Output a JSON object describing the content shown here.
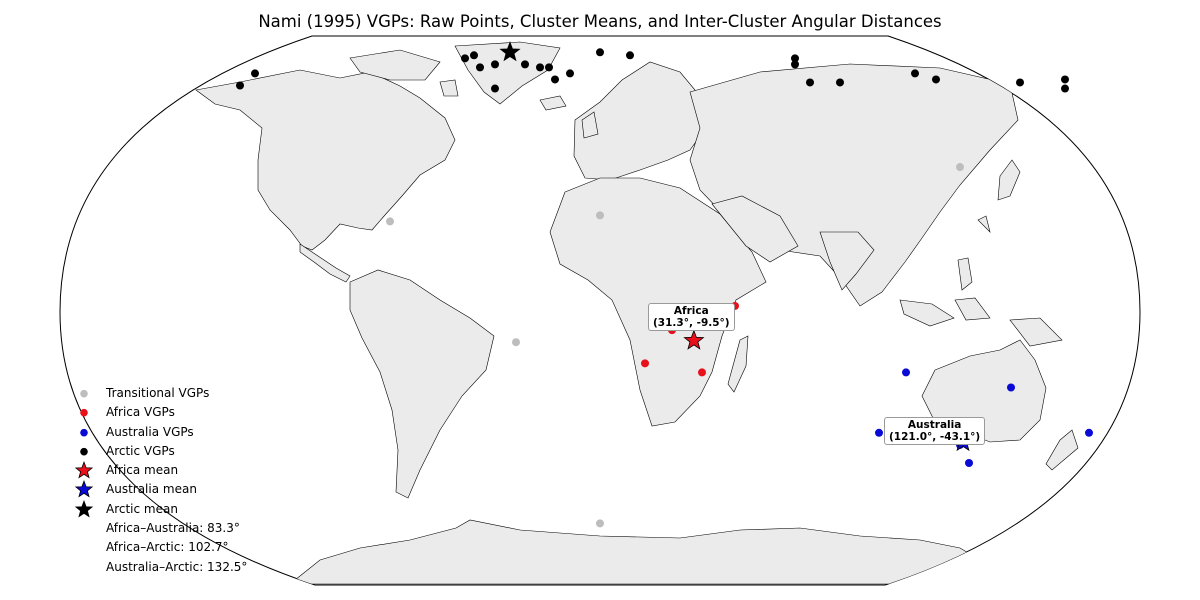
{
  "title": "Nami (1995) VGPs: Raw Points, Cluster Means, and Inter-Cluster Angular Distances",
  "colors": {
    "transitional": "#bdbdbd",
    "africa": "#e8101a",
    "australia": "#0a0ad6",
    "arctic": "#000000",
    "land": "#ebebeb",
    "ocean": "#ffffff"
  },
  "legend": [
    {
      "label": "Transitional VGPs",
      "marker": "dot",
      "color": "#bdbdbd"
    },
    {
      "label": "Africa VGPs",
      "marker": "dot",
      "color": "#e8101a"
    },
    {
      "label": "Australia VGPs",
      "marker": "dot",
      "color": "#0a0ad6"
    },
    {
      "label": "Arctic VGPs",
      "marker": "dot",
      "color": "#000000"
    },
    {
      "label": "Africa mean",
      "marker": "star",
      "color": "#e8101a"
    },
    {
      "label": "Australia mean",
      "marker": "star",
      "color": "#0a0ad6"
    },
    {
      "label": "Arctic mean",
      "marker": "star",
      "color": "#000000"
    },
    {
      "label": "Africa–Australia: 83.3°",
      "marker": "none"
    },
    {
      "label": "Africa–Arctic: 102.7°",
      "marker": "none"
    },
    {
      "label": "Australia–Arctic: 132.5°",
      "marker": "none"
    }
  ],
  "annotations": {
    "africa_name": "Africa",
    "africa_coords": "(31.3°, -9.5°)",
    "australia_name": "Australia",
    "australia_coords": "(121.0°, -43.1°)"
  },
  "chart_data": {
    "type": "scatter",
    "projection": "Robinson",
    "series": [
      {
        "name": "Transitional VGPs",
        "points": [
          [
            -28,
            -10
          ],
          [
            0,
            -70
          ],
          [
            -70,
            30
          ],
          [
            120,
            48
          ],
          [
            0,
            32
          ]
        ]
      },
      {
        "name": "Africa VGPs",
        "points": [
          [
            24,
            -6
          ],
          [
            45,
            2
          ],
          [
            15,
            -17
          ],
          [
            34,
            -20
          ]
        ]
      },
      {
        "name": "Australia VGPs",
        "points": [
          [
            102,
            -20
          ],
          [
            137,
            -25
          ],
          [
            93,
            -40
          ],
          [
            120,
            -44
          ],
          [
            163,
            -40
          ],
          [
            123,
            -50
          ]
        ]
      },
      {
        "name": "Arctic VGPs",
        "points": [
          [
            -45,
            84
          ],
          [
            -40,
            81
          ],
          [
            -35,
            82
          ],
          [
            -25,
            82
          ],
          [
            -10,
            79
          ],
          [
            -17,
            81
          ],
          [
            0,
            86
          ],
          [
            10,
            85
          ],
          [
            65,
            84
          ],
          [
            65,
            82
          ],
          [
            70,
            76
          ],
          [
            105,
            79
          ],
          [
            112,
            77
          ],
          [
            140,
            76
          ],
          [
            155,
            74
          ],
          [
            155,
            77
          ],
          [
            -35,
            74
          ],
          [
            -120,
            75
          ],
          [
            -15,
            77
          ],
          [
            80,
            76
          ],
          [
            -115,
            79
          ],
          [
            -42,
            85
          ],
          [
            -20,
            81
          ]
        ]
      },
      {
        "name": "Africa mean",
        "points": [
          [
            31.3,
            -9.5
          ]
        ]
      },
      {
        "name": "Australia mean",
        "points": [
          [
            121.0,
            -43.1
          ]
        ]
      },
      {
        "name": "Arctic mean",
        "points": [
          [
            -30,
            86
          ]
        ]
      }
    ]
  }
}
